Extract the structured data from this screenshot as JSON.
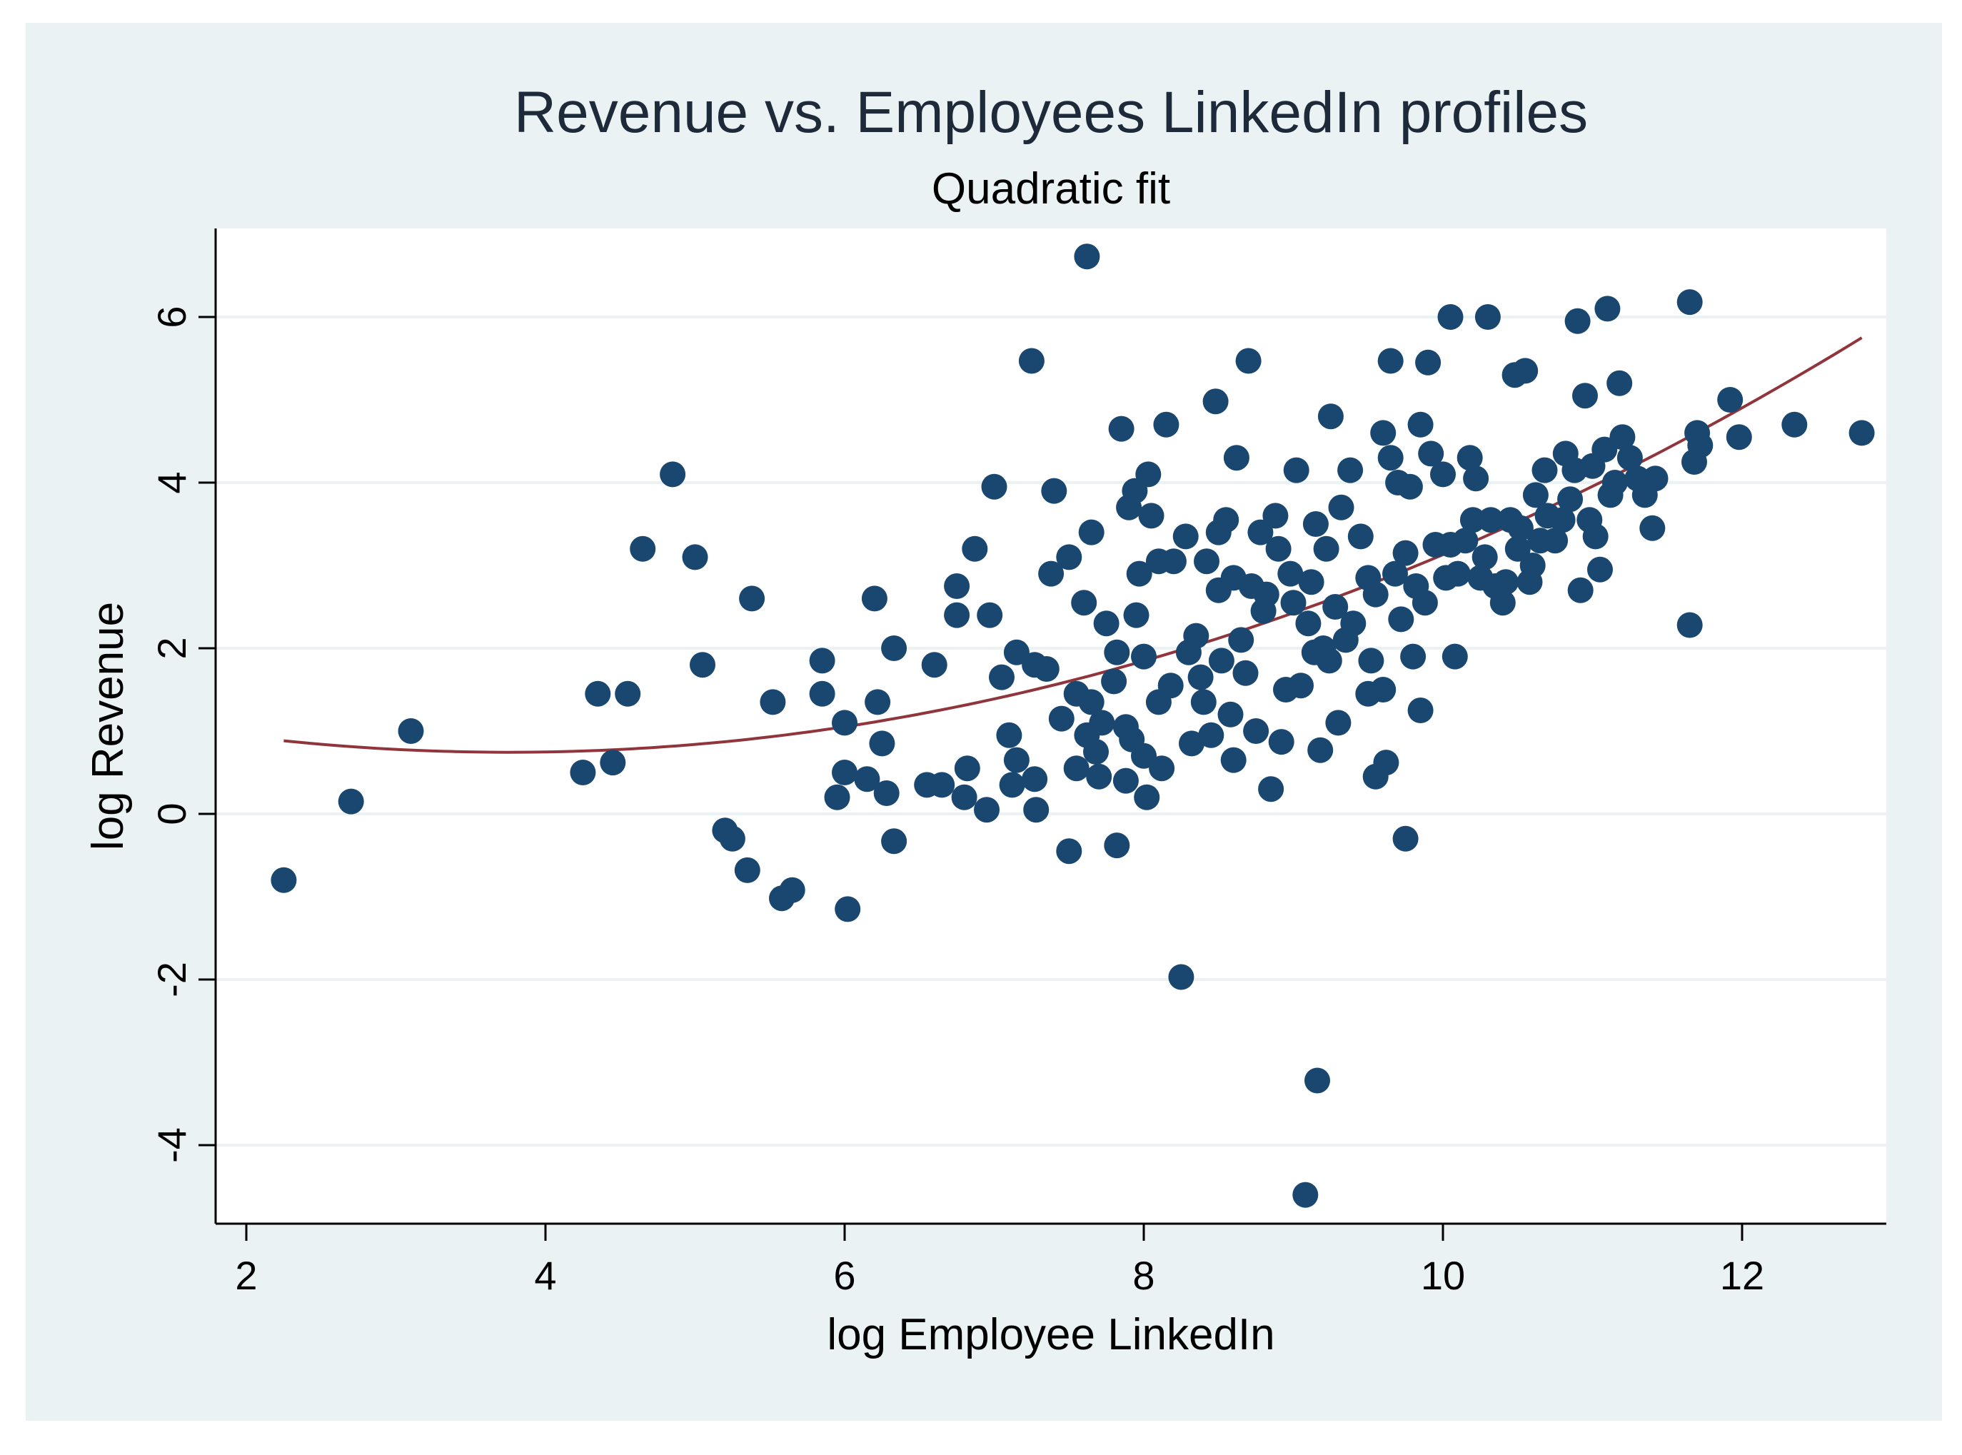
{
  "chart_data": {
    "type": "scatter",
    "title": "Revenue vs. Employees LinkedIn profiles",
    "subtitle": "Quadratic fit",
    "xlabel": "log Employee LinkedIn",
    "ylabel": "log Revenue",
    "xlim": [
      1.8,
      13.0
    ],
    "ylim": [
      -5.0,
      7.1
    ],
    "x_ticks": [
      2,
      4,
      6,
      8,
      10,
      12
    ],
    "y_ticks": [
      -4,
      -2,
      0,
      2,
      4,
      6
    ],
    "grid": true,
    "colors": {
      "background": "#eaf2f3",
      "plot": "#ffffff",
      "marker": "#1a476f",
      "fit": "#90353b",
      "grid": "#eaf2f3",
      "text": "#1e2a3a"
    },
    "fit": {
      "type": "quadratic",
      "x_range": [
        2.25,
        12.8
      ],
      "points": [
        [
          2.25,
          0.88
        ],
        [
          3.8,
          0.73
        ],
        [
          6.0,
          1.05
        ],
        [
          8.0,
          1.95
        ],
        [
          10.0,
          3.05
        ],
        [
          11.0,
          3.9
        ],
        [
          12.8,
          5.8
        ]
      ]
    },
    "points": [
      [
        2.25,
        -0.8
      ],
      [
        2.7,
        0.15
      ],
      [
        3.1,
        1.0
      ],
      [
        4.25,
        0.5
      ],
      [
        4.35,
        1.45
      ],
      [
        4.45,
        0.62
      ],
      [
        4.55,
        1.45
      ],
      [
        4.65,
        3.2
      ],
      [
        4.85,
        4.1
      ],
      [
        5.0,
        3.1
      ],
      [
        5.05,
        1.8
      ],
      [
        5.2,
        -0.2
      ],
      [
        5.25,
        -0.3
      ],
      [
        5.35,
        -0.68
      ],
      [
        5.38,
        2.6
      ],
      [
        5.52,
        1.35
      ],
      [
        5.58,
        -1.02
      ],
      [
        5.65,
        -0.92
      ],
      [
        5.85,
        1.85
      ],
      [
        5.85,
        1.45
      ],
      [
        5.95,
        0.2
      ],
      [
        6.0,
        0.5
      ],
      [
        6.0,
        1.1
      ],
      [
        6.02,
        -1.15
      ],
      [
        6.15,
        0.42
      ],
      [
        6.2,
        2.6
      ],
      [
        6.22,
        1.35
      ],
      [
        6.25,
        0.85
      ],
      [
        6.28,
        0.25
      ],
      [
        6.33,
        2.0
      ],
      [
        6.33,
        -0.33
      ],
      [
        6.55,
        0.35
      ],
      [
        6.6,
        1.8
      ],
      [
        6.65,
        0.35
      ],
      [
        6.75,
        2.75
      ],
      [
        6.75,
        2.4
      ],
      [
        6.8,
        0.2
      ],
      [
        6.82,
        0.55
      ],
      [
        6.87,
        3.2
      ],
      [
        6.95,
        0.05
      ],
      [
        6.97,
        2.4
      ],
      [
        7.0,
        3.95
      ],
      [
        7.05,
        1.65
      ],
      [
        7.1,
        0.95
      ],
      [
        7.12,
        0.35
      ],
      [
        7.15,
        0.65
      ],
      [
        7.15,
        1.95
      ],
      [
        7.25,
        5.47
      ],
      [
        7.27,
        1.8
      ],
      [
        7.27,
        0.42
      ],
      [
        7.28,
        0.05
      ],
      [
        7.35,
        1.75
      ],
      [
        7.38,
        2.9
      ],
      [
        7.4,
        3.9
      ],
      [
        7.45,
        1.15
      ],
      [
        7.5,
        3.1
      ],
      [
        7.5,
        -0.45
      ],
      [
        7.55,
        0.55
      ],
      [
        7.55,
        1.45
      ],
      [
        7.6,
        2.55
      ],
      [
        7.62,
        6.73
      ],
      [
        7.62,
        0.95
      ],
      [
        7.65,
        3.4
      ],
      [
        7.65,
        1.35
      ],
      [
        7.68,
        0.75
      ],
      [
        7.7,
        0.45
      ],
      [
        7.72,
        1.1
      ],
      [
        7.75,
        2.3
      ],
      [
        7.8,
        1.6
      ],
      [
        7.82,
        1.95
      ],
      [
        7.82,
        -0.38
      ],
      [
        7.85,
        4.65
      ],
      [
        7.88,
        0.4
      ],
      [
        7.88,
        1.05
      ],
      [
        7.9,
        3.7
      ],
      [
        7.92,
        0.9
      ],
      [
        7.94,
        3.9
      ],
      [
        7.95,
        2.4
      ],
      [
        7.97,
        2.9
      ],
      [
        8.0,
        1.9
      ],
      [
        8.0,
        0.7
      ],
      [
        8.02,
        0.2
      ],
      [
        8.03,
        4.1
      ],
      [
        8.05,
        3.6
      ],
      [
        8.1,
        3.05
      ],
      [
        8.1,
        1.35
      ],
      [
        8.12,
        0.55
      ],
      [
        8.15,
        4.7
      ],
      [
        8.18,
        1.55
      ],
      [
        8.2,
        3.05
      ],
      [
        8.25,
        -1.97
      ],
      [
        8.28,
        3.35
      ],
      [
        8.3,
        1.95
      ],
      [
        8.32,
        0.85
      ],
      [
        8.35,
        2.15
      ],
      [
        8.38,
        1.65
      ],
      [
        8.4,
        1.35
      ],
      [
        8.42,
        3.05
      ],
      [
        8.45,
        0.95
      ],
      [
        8.48,
        4.98
      ],
      [
        8.5,
        2.7
      ],
      [
        8.5,
        3.4
      ],
      [
        8.52,
        1.85
      ],
      [
        8.55,
        3.55
      ],
      [
        8.58,
        1.2
      ],
      [
        8.6,
        0.65
      ],
      [
        8.6,
        2.85
      ],
      [
        8.62,
        4.3
      ],
      [
        8.65,
        2.1
      ],
      [
        8.68,
        1.7
      ],
      [
        8.7,
        5.47
      ],
      [
        8.72,
        2.75
      ],
      [
        8.75,
        1.0
      ],
      [
        8.78,
        3.4
      ],
      [
        8.8,
        2.45
      ],
      [
        8.82,
        2.65
      ],
      [
        8.85,
        0.3
      ],
      [
        8.88,
        3.6
      ],
      [
        8.9,
        3.2
      ],
      [
        8.92,
        0.87
      ],
      [
        8.95,
        1.5
      ],
      [
        8.98,
        2.9
      ],
      [
        9.0,
        2.55
      ],
      [
        9.02,
        4.15
      ],
      [
        9.05,
        1.55
      ],
      [
        9.08,
        -4.6
      ],
      [
        9.1,
        2.3
      ],
      [
        9.12,
        2.8
      ],
      [
        9.14,
        1.95
      ],
      [
        9.15,
        3.5
      ],
      [
        9.16,
        -3.22
      ],
      [
        9.18,
        0.77
      ],
      [
        9.2,
        2.0
      ],
      [
        9.22,
        3.2
      ],
      [
        9.24,
        1.85
      ],
      [
        9.25,
        4.8
      ],
      [
        9.28,
        2.5
      ],
      [
        9.3,
        1.1
      ],
      [
        9.32,
        3.7
      ],
      [
        9.35,
        2.1
      ],
      [
        9.38,
        4.15
      ],
      [
        9.4,
        2.3
      ],
      [
        9.45,
        3.35
      ],
      [
        9.5,
        1.45
      ],
      [
        9.5,
        2.85
      ],
      [
        9.52,
        1.85
      ],
      [
        9.55,
        0.45
      ],
      [
        9.55,
        2.65
      ],
      [
        9.6,
        4.6
      ],
      [
        9.6,
        1.5
      ],
      [
        9.62,
        0.62
      ],
      [
        9.65,
        5.47
      ],
      [
        9.65,
        4.3
      ],
      [
        9.68,
        2.9
      ],
      [
        9.7,
        4.0
      ],
      [
        9.72,
        2.35
      ],
      [
        9.75,
        -0.3
      ],
      [
        9.75,
        3.15
      ],
      [
        9.78,
        3.95
      ],
      [
        9.8,
        1.9
      ],
      [
        9.82,
        2.75
      ],
      [
        9.85,
        1.25
      ],
      [
        9.85,
        4.7
      ],
      [
        9.88,
        2.55
      ],
      [
        9.9,
        5.45
      ],
      [
        9.92,
        4.35
      ],
      [
        9.95,
        3.25
      ],
      [
        10.0,
        4.1
      ],
      [
        10.02,
        2.85
      ],
      [
        10.05,
        6.0
      ],
      [
        10.05,
        3.25
      ],
      [
        10.08,
        1.9
      ],
      [
        10.1,
        2.9
      ],
      [
        10.15,
        3.3
      ],
      [
        10.18,
        4.3
      ],
      [
        10.2,
        3.55
      ],
      [
        10.22,
        4.05
      ],
      [
        10.25,
        2.85
      ],
      [
        10.28,
        3.1
      ],
      [
        10.3,
        6.0
      ],
      [
        10.32,
        3.55
      ],
      [
        10.35,
        2.75
      ],
      [
        10.4,
        2.55
      ],
      [
        10.42,
        2.8
      ],
      [
        10.45,
        3.55
      ],
      [
        10.48,
        5.3
      ],
      [
        10.5,
        3.2
      ],
      [
        10.52,
        3.45
      ],
      [
        10.55,
        5.35
      ],
      [
        10.58,
        2.8
      ],
      [
        10.6,
        3.0
      ],
      [
        10.62,
        3.85
      ],
      [
        10.65,
        3.3
      ],
      [
        10.68,
        4.15
      ],
      [
        10.7,
        3.6
      ],
      [
        10.75,
        3.3
      ],
      [
        10.8,
        3.55
      ],
      [
        10.82,
        4.35
      ],
      [
        10.85,
        3.8
      ],
      [
        10.88,
        4.15
      ],
      [
        10.9,
        5.95
      ],
      [
        10.92,
        2.7
      ],
      [
        10.95,
        5.05
      ],
      [
        10.98,
        3.55
      ],
      [
        11.0,
        4.2
      ],
      [
        11.02,
        3.35
      ],
      [
        11.05,
        2.95
      ],
      [
        11.08,
        4.4
      ],
      [
        11.1,
        6.1
      ],
      [
        11.12,
        3.85
      ],
      [
        11.15,
        4.0
      ],
      [
        11.18,
        5.2
      ],
      [
        11.2,
        4.55
      ],
      [
        11.25,
        4.3
      ],
      [
        11.3,
        4.05
      ],
      [
        11.35,
        3.85
      ],
      [
        11.4,
        3.45
      ],
      [
        11.42,
        4.05
      ],
      [
        11.65,
        6.18
      ],
      [
        11.65,
        2.28
      ],
      [
        11.68,
        4.25
      ],
      [
        11.7,
        4.6
      ],
      [
        11.72,
        4.45
      ],
      [
        11.92,
        5.0
      ],
      [
        11.98,
        4.55
      ],
      [
        12.35,
        4.7
      ],
      [
        12.8,
        4.6
      ]
    ]
  }
}
